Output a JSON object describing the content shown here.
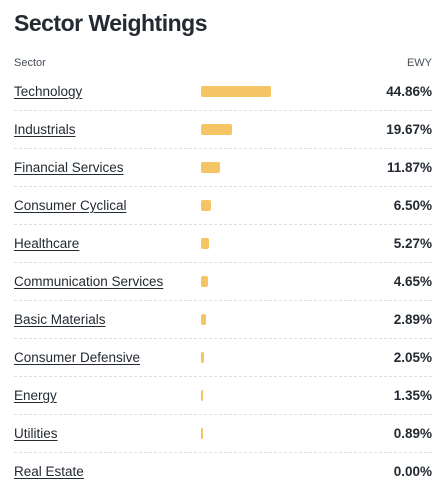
{
  "title": "Sector Weightings",
  "columns": {
    "sector": "Sector",
    "fund": "EWY"
  },
  "bar_color": "#f5c465",
  "bar_scale_max": 70,
  "sectors": [
    {
      "label": "Technology",
      "value": 44.86,
      "display": "44.86%"
    },
    {
      "label": "Industrials",
      "value": 19.67,
      "display": "19.67%"
    },
    {
      "label": "Financial Services",
      "value": 11.87,
      "display": "11.87%"
    },
    {
      "label": "Consumer Cyclical",
      "value": 6.5,
      "display": "6.50%"
    },
    {
      "label": "Healthcare",
      "value": 5.27,
      "display": "5.27%"
    },
    {
      "label": "Communication Services",
      "value": 4.65,
      "display": "4.65%"
    },
    {
      "label": "Basic Materials",
      "value": 2.89,
      "display": "2.89%"
    },
    {
      "label": "Consumer Defensive",
      "value": 2.05,
      "display": "2.05%"
    },
    {
      "label": "Energy",
      "value": 1.35,
      "display": "1.35%"
    },
    {
      "label": "Utilities",
      "value": 0.89,
      "display": "0.89%"
    },
    {
      "label": "Real Estate",
      "value": 0.0,
      "display": "0.00%"
    }
  ]
}
